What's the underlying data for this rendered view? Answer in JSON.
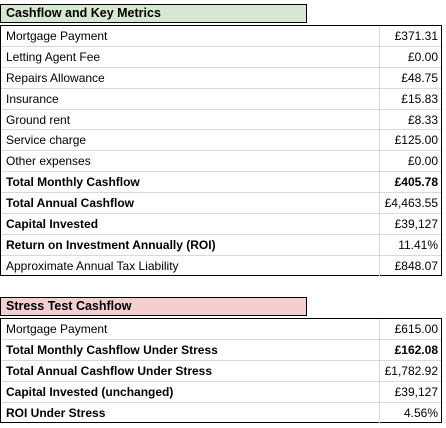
{
  "cashflow": {
    "title": "Cashflow and Key Metrics",
    "rows": [
      {
        "label": "Mortgage Payment",
        "value": "£371.31",
        "bold": false
      },
      {
        "label": "Letting Agent Fee",
        "value": "£0.00",
        "bold": false
      },
      {
        "label": "Repairs Allowance",
        "value": "£48.75",
        "bold": false
      },
      {
        "label": "Insurance",
        "value": "£15.83",
        "bold": false
      },
      {
        "label": "Ground rent",
        "value": "£8.33",
        "bold": false
      },
      {
        "label": "Service charge",
        "value": "£125.00",
        "bold": false
      },
      {
        "label": "Other expenses",
        "value": "£0.00",
        "bold": false
      },
      {
        "label": "Total Monthly Cashflow",
        "value": "£405.78",
        "bold": true
      },
      {
        "label": "Total Annual Cashflow",
        "value": "£4,463.55",
        "bold": true
      },
      {
        "label": "Capital Invested",
        "value": "£39,127",
        "bold": true
      },
      {
        "label": "Return on Investment Annually (ROI)",
        "value": "11.41%",
        "bold": true
      },
      {
        "label": "Approximate Annual Tax Liability",
        "value": "£848.07",
        "bold": false
      }
    ]
  },
  "stress": {
    "title": "Stress Test Cashflow",
    "rows": [
      {
        "label": "Mortgage Payment",
        "value": "£615.00",
        "bold": false
      },
      {
        "label": "Total Monthly Cashflow Under Stress",
        "value": "£162.08",
        "bold": true
      },
      {
        "label": "Total Annual Cashflow Under Stress",
        "value": "£1,782.92",
        "bold": true
      },
      {
        "label": "Capital Invested (unchanged)",
        "value": "£39,127",
        "bold": true
      },
      {
        "label": "ROI Under Stress",
        "value": "4.56%",
        "bold": true
      }
    ]
  },
  "colors": {
    "cashflow_header_bg": "#d7e8d2",
    "stress_header_bg": "#f3cfd2"
  }
}
